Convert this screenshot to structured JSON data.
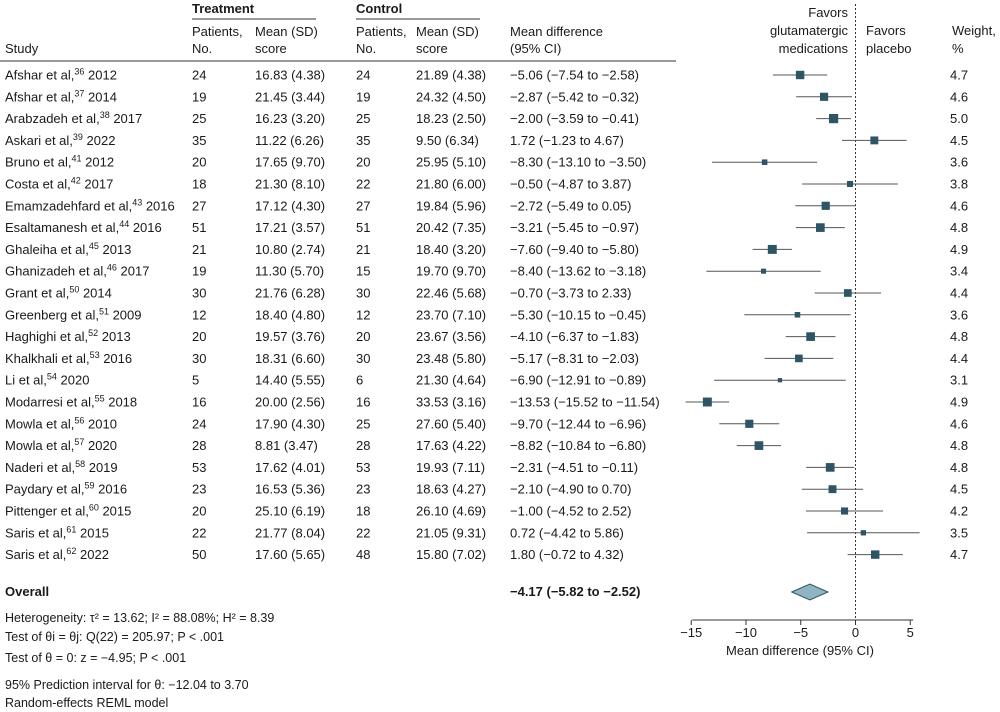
{
  "chart_data": {
    "type": "forest",
    "headers": {
      "group_treatment": "Treatment",
      "group_control": "Control",
      "study": "Study",
      "patients_l1": "Patients,",
      "patients_l2": "No.",
      "mean_l1": "Mean (SD)",
      "mean_l2": "score",
      "diff_l1": "Mean difference",
      "diff_l2": "(95% CI)",
      "favors_left_l1": "Favors",
      "favors_left_l2": "glutamatergic",
      "favors_left_l3": "medications",
      "favors_right_l1": "Favors",
      "favors_right_l2": "placebo",
      "weight_l1": "Weight,",
      "weight_l2": "%"
    },
    "studies": [
      {
        "author": "Afshar et al,",
        "ref": "36",
        "year": "2012",
        "t_n": "24",
        "t_mean": "16.83 (4.38)",
        "c_n": "24",
        "c_mean": "21.89 (4.38)",
        "md_text": "−5.06 (−7.54 to −2.58)",
        "md": -5.06,
        "lo": -7.54,
        "hi": -2.58,
        "weight": 4.7,
        "weight_text": "4.7"
      },
      {
        "author": "Afshar et al,",
        "ref": "37",
        "year": "2014",
        "t_n": "19",
        "t_mean": "21.45 (3.44)",
        "c_n": "19",
        "c_mean": "24.32 (4.50)",
        "md_text": "−2.87 (−5.42 to −0.32)",
        "md": -2.87,
        "lo": -5.42,
        "hi": -0.32,
        "weight": 4.6,
        "weight_text": "4.6"
      },
      {
        "author": "Arabzadeh et al,",
        "ref": "38",
        "year": "2017",
        "t_n": "25",
        "t_mean": "16.23 (3.20)",
        "c_n": "25",
        "c_mean": "18.23 (2.50)",
        "md_text": "−2.00 (−3.59 to −0.41)",
        "md": -2.0,
        "lo": -3.59,
        "hi": -0.41,
        "weight": 5.0,
        "weight_text": "5.0"
      },
      {
        "author": "Askari et al,",
        "ref": "39",
        "year": "2022",
        "t_n": "35",
        "t_mean": "11.22 (6.26)",
        "c_n": "35",
        "c_mean": "9.50 (6.34)",
        "md_text": "1.72 (−1.23 to 4.67)",
        "md": 1.72,
        "lo": -1.23,
        "hi": 4.67,
        "weight": 4.5,
        "weight_text": "4.5"
      },
      {
        "author": "Bruno et al,",
        "ref": "41",
        "year": "2012",
        "t_n": "20",
        "t_mean": "17.65 (9.70)",
        "c_n": "20",
        "c_mean": "25.95 (5.10)",
        "md_text": "−8.30 (−13.10 to −3.50)",
        "md": -8.3,
        "lo": -13.1,
        "hi": -3.5,
        "weight": 3.6,
        "weight_text": "3.6"
      },
      {
        "author": "Costa et al,",
        "ref": "42",
        "year": "2017",
        "t_n": "18",
        "t_mean": "21.30 (8.10)",
        "c_n": "22",
        "c_mean": "21.80 (6.00)",
        "md_text": "−0.50 (−4.87 to 3.87)",
        "md": -0.5,
        "lo": -4.87,
        "hi": 3.87,
        "weight": 3.8,
        "weight_text": "3.8"
      },
      {
        "author": "Emamzadehfard et al,",
        "ref": "43",
        "year": "2016",
        "t_n": "27",
        "t_mean": "17.12 (4.30)",
        "c_n": "27",
        "c_mean": "19.84 (5.96)",
        "md_text": "−2.72 (−5.49 to 0.05)",
        "md": -2.72,
        "lo": -5.49,
        "hi": 0.05,
        "weight": 4.6,
        "weight_text": "4.6"
      },
      {
        "author": "Esaltamanesh et al,",
        "ref": "44",
        "year": "2016",
        "t_n": "51",
        "t_mean": "17.21 (3.57)",
        "c_n": "51",
        "c_mean": "20.42 (7.35)",
        "md_text": "−3.21 (−5.45 to −0.97)",
        "md": -3.21,
        "lo": -5.45,
        "hi": -0.97,
        "weight": 4.8,
        "weight_text": "4.8"
      },
      {
        "author": "Ghaleiha et al,",
        "ref": "45",
        "year": "2013",
        "t_n": "21",
        "t_mean": "10.80 (2.74)",
        "c_n": "21",
        "c_mean": "18.40 (3.20)",
        "md_text": "−7.60 (−9.40 to −5.80)",
        "md": -7.6,
        "lo": -9.4,
        "hi": -5.8,
        "weight": 4.9,
        "weight_text": "4.9"
      },
      {
        "author": "Ghanizadeh et al,",
        "ref": "46",
        "year": "2017",
        "t_n": "19",
        "t_mean": "11.30 (5.70)",
        "c_n": "15",
        "c_mean": "19.70 (9.70)",
        "md_text": "−8.40 (−13.62 to −3.18)",
        "md": -8.4,
        "lo": -13.62,
        "hi": -3.18,
        "weight": 3.4,
        "weight_text": "3.4"
      },
      {
        "author": "Grant et al,",
        "ref": "50",
        "year": "2014",
        "t_n": "30",
        "t_mean": "21.76 (6.28)",
        "c_n": "30",
        "c_mean": "22.46 (5.68)",
        "md_text": "−0.70 (−3.73 to 2.33)",
        "md": -0.7,
        "lo": -3.73,
        "hi": 2.33,
        "weight": 4.4,
        "weight_text": "4.4"
      },
      {
        "author": "Greenberg et al,",
        "ref": "51",
        "year": "2009",
        "t_n": "12",
        "t_mean": "18.40 (4.80)",
        "c_n": "12",
        "c_mean": "23.70 (7.10)",
        "md_text": "−5.30 (−10.15 to −0.45)",
        "md": -5.3,
        "lo": -10.15,
        "hi": -0.45,
        "weight": 3.6,
        "weight_text": "3.6"
      },
      {
        "author": "Haghighi et al,",
        "ref": "52",
        "year": "2013",
        "t_n": "20",
        "t_mean": "19.57 (3.76)",
        "c_n": "20",
        "c_mean": "23.67 (3.56)",
        "md_text": "−4.10 (−6.37 to −1.83)",
        "md": -4.1,
        "lo": -6.37,
        "hi": -1.83,
        "weight": 4.8,
        "weight_text": "4.8"
      },
      {
        "author": "Khalkhali et al,",
        "ref": "53",
        "year": "2016",
        "t_n": "30",
        "t_mean": "18.31 (6.60)",
        "c_n": "30",
        "c_mean": "23.48 (5.80)",
        "md_text": "−5.17 (−8.31 to −2.03)",
        "md": -5.17,
        "lo": -8.31,
        "hi": -2.03,
        "weight": 4.4,
        "weight_text": "4.4"
      },
      {
        "author": "Li et al,",
        "ref": "54",
        "year": "2020",
        "t_n": "5",
        "t_mean": "14.40 (5.55)",
        "c_n": "6",
        "c_mean": "21.30 (4.64)",
        "md_text": "−6.90 (−12.91 to −0.89)",
        "md": -6.9,
        "lo": -12.91,
        "hi": -0.89,
        "weight": 3.1,
        "weight_text": "3.1"
      },
      {
        "author": "Modarresi et al,",
        "ref": "55",
        "year": "2018",
        "t_n": "16",
        "t_mean": "20.00 (2.56)",
        "c_n": "16",
        "c_mean": "33.53 (3.16)",
        "md_text": "−13.53 (−15.52 to −11.54)",
        "md": -13.53,
        "lo": -15.52,
        "hi": -11.54,
        "weight": 4.9,
        "weight_text": "4.9"
      },
      {
        "author": "Mowla et al,",
        "ref": "56",
        "year": "2010",
        "t_n": "24",
        "t_mean": "17.90 (4.30)",
        "c_n": "25",
        "c_mean": "27.60 (5.40)",
        "md_text": "−9.70 (−12.44 to −6.96)",
        "md": -9.7,
        "lo": -12.44,
        "hi": -6.96,
        "weight": 4.6,
        "weight_text": "4.6"
      },
      {
        "author": "Mowla et al,",
        "ref": "57",
        "year": "2020",
        "t_n": "28",
        "t_mean": "8.81 (3.47)",
        "c_n": "28",
        "c_mean": "17.63 (4.22)",
        "md_text": "−8.82 (−10.84 to −6.80)",
        "md": -8.82,
        "lo": -10.84,
        "hi": -6.8,
        "weight": 4.8,
        "weight_text": "4.8"
      },
      {
        "author": "Naderi et al,",
        "ref": "58",
        "year": "2019",
        "t_n": "53",
        "t_mean": "17.62 (4.01)",
        "c_n": "53",
        "c_mean": "19.93 (7.11)",
        "md_text": "−2.31 (−4.51 to −0.11)",
        "md": -2.31,
        "lo": -4.51,
        "hi": -0.11,
        "weight": 4.8,
        "weight_text": "4.8"
      },
      {
        "author": "Paydary et al,",
        "ref": "59",
        "year": "2016",
        "t_n": "23",
        "t_mean": "16.53 (5.36)",
        "c_n": "23",
        "c_mean": "18.63 (4.27)",
        "md_text": "−2.10 (−4.90 to 0.70)",
        "md": -2.1,
        "lo": -4.9,
        "hi": 0.7,
        "weight": 4.5,
        "weight_text": "4.5"
      },
      {
        "author": "Pittenger et al,",
        "ref": "60",
        "year": "2015",
        "t_n": "20",
        "t_mean": "25.10 (6.19)",
        "c_n": "18",
        "c_mean": "26.10 (4.69)",
        "md_text": "−1.00 (−4.52 to 2.52)",
        "md": -1.0,
        "lo": -4.52,
        "hi": 2.52,
        "weight": 4.2,
        "weight_text": "4.2"
      },
      {
        "author": "Saris et al,",
        "ref": "61",
        "year": "2015",
        "t_n": "22",
        "t_mean": "21.77 (8.04)",
        "c_n": "22",
        "c_mean": "21.05 (9.31)",
        "md_text": "0.72 (−4.42 to 5.86)",
        "md": 0.72,
        "lo": -4.42,
        "hi": 5.86,
        "weight": 3.5,
        "weight_text": "3.5"
      },
      {
        "author": "Saris et al,",
        "ref": "62",
        "year": "2022",
        "t_n": "50",
        "t_mean": "17.60 (5.65)",
        "c_n": "48",
        "c_mean": "15.80 (7.02)",
        "md_text": "1.80 (−0.72 to 4.32)",
        "md": 1.8,
        "lo": -0.72,
        "hi": 4.32,
        "weight": 4.7,
        "weight_text": "4.7"
      }
    ],
    "overall": {
      "label": "Overall",
      "md_text": "−4.17 (−5.82 to −2.52)",
      "md": -4.17,
      "lo": -5.82,
      "hi": -2.52
    },
    "stats": {
      "heterogeneity": "Heterogeneity: τ² = 13.62; I² = 88.08%; H² = 8.39",
      "test_theta_ij": "Test of θi = θj: Q(22) = 205.97; P < .001",
      "test_theta_0": "Test of θ = 0: z = −4.95; P < .001",
      "prediction_interval": "95% Prediction interval for θ: −12.04 to 3.70",
      "model": "Random-effects REML model"
    },
    "xaxis": {
      "label": "Mean difference (95% CI)",
      "range": [
        -16,
        6
      ],
      "ticks": [
        -15,
        -10,
        -5,
        0,
        5
      ],
      "tick_labels": [
        "−15",
        "−10",
        "−5",
        "0",
        "5"
      ]
    },
    "colors": {
      "marker": "#2e5565",
      "diamond": "#8fb4c4",
      "diamond_stroke": "#2e5565",
      "line": "#555555"
    }
  }
}
